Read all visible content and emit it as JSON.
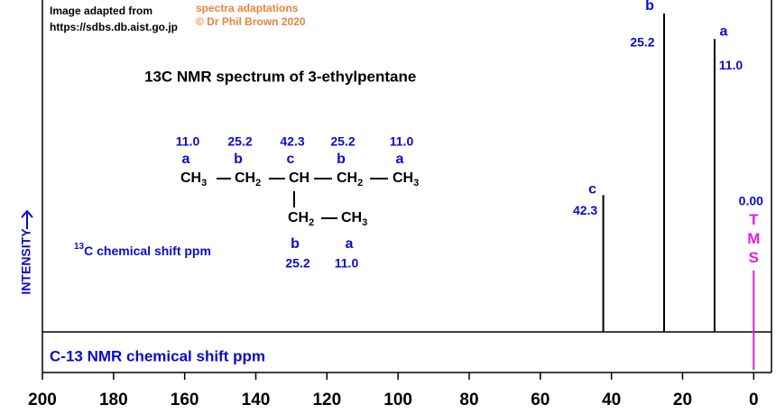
{
  "chart_data": {
    "type": "spectrum",
    "title": "13C NMR spectrum of 3-ethylpentane",
    "credit": [
      "Image adapted from",
      "https://sdbs.db.aist.go.jp"
    ],
    "adaptation": [
      "spectra adaptations",
      "© Dr Phil Brown 2020"
    ],
    "y_label": "INTENSITY",
    "x_label": "C-13 NMR chemical shift ppm",
    "note": "13C chemical shift ppm",
    "xlim": [
      200,
      -5
    ],
    "xticks": [
      200,
      180,
      160,
      140,
      120,
      100,
      80,
      60,
      40,
      20,
      0
    ],
    "ylim": [
      0,
      100
    ],
    "peaks": {
      "labels": [
        "c",
        "b",
        "a"
      ],
      "values": [
        42.3,
        25.2,
        11.0
      ],
      "value_labels": [
        "42.3",
        "25.2",
        "11.0"
      ],
      "intensity": [
        43,
        100,
        92
      ],
      "color": "#000000"
    },
    "tms": {
      "value": 0,
      "value_label": "0.00",
      "label": "TMS",
      "color": "#e020e0"
    },
    "structure": {
      "shifts": [
        "11.0",
        "25.2",
        "42.3",
        "25.2",
        "11.0"
      ],
      "letters": [
        "a",
        "b",
        "c",
        "b",
        "a"
      ],
      "groups": [
        "CH3",
        "CH2",
        "CH",
        "CH2",
        "CH3"
      ],
      "branch_groups": [
        "CH2",
        "CH3"
      ],
      "branch_letters": [
        "b",
        "a"
      ],
      "branch_shifts": [
        "25.2",
        "11.0"
      ]
    }
  }
}
